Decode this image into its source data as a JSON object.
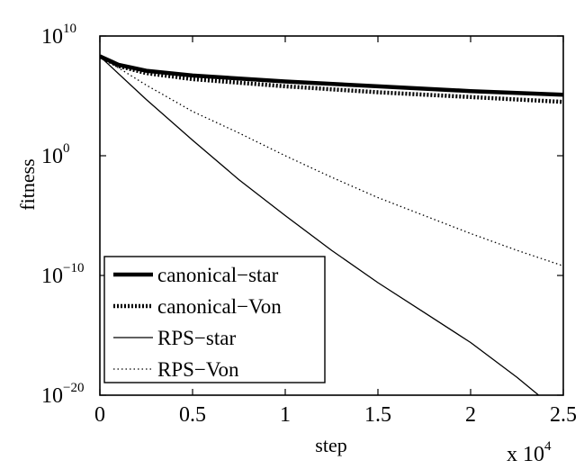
{
  "chart_data": {
    "type": "line",
    "xlabel": "step",
    "ylabel": "fitness",
    "x_multiplier_label": "x 10",
    "x_multiplier_exp": "4",
    "xlim": [
      0,
      2.5
    ],
    "ylim_log10": [
      -20,
      10
    ],
    "y_scale": "log",
    "grid": false,
    "legend_position": "bottom-left",
    "x_ticks": [
      "0",
      "0.5",
      "1",
      "1.5",
      "2",
      "2.5"
    ],
    "y_ticks": [
      {
        "base": "10",
        "exp": "10",
        "log10": 10
      },
      {
        "base": "10",
        "exp": "0",
        "log10": 0
      },
      {
        "base": "10",
        "exp": "−10",
        "log10": -10
      },
      {
        "base": "10",
        "exp": "−20",
        "log10": -20
      }
    ],
    "series": [
      {
        "name": "canonical−star",
        "style": "thick",
        "color": "#000000",
        "x": [
          0,
          0.1,
          0.25,
          0.5,
          1.0,
          1.5,
          2.0,
          2.5
        ],
        "log10_y": [
          8.3,
          7.6,
          7.1,
          6.7,
          6.2,
          5.8,
          5.4,
          5.1
        ]
      },
      {
        "name": "canonical−Von",
        "style": "thick-dotted",
        "color": "#000000",
        "x": [
          0,
          0.1,
          0.25,
          0.5,
          1.0,
          1.5,
          2.0,
          2.5
        ],
        "log10_y": [
          8.3,
          7.5,
          6.9,
          6.4,
          5.8,
          5.3,
          4.9,
          4.5
        ]
      },
      {
        "name": "RPS−star",
        "style": "solid",
        "color": "#000000",
        "x": [
          0,
          0.25,
          0.5,
          0.75,
          1.0,
          1.25,
          1.5,
          1.75,
          2.0,
          2.25,
          2.5
        ],
        "log10_y": [
          8.3,
          4.7,
          1.3,
          -2.0,
          -5.0,
          -7.9,
          -10.6,
          -13.1,
          -15.6,
          -18.5,
          -21.7
        ]
      },
      {
        "name": "RPS−Von",
        "style": "dotted",
        "color": "#000000",
        "x": [
          0,
          0.25,
          0.5,
          0.75,
          1.0,
          1.25,
          1.5,
          1.75,
          2.0,
          2.25,
          2.5
        ],
        "log10_y": [
          8.3,
          5.9,
          3.7,
          1.9,
          0.0,
          -1.8,
          -3.5,
          -5.0,
          -6.5,
          -7.9,
          -9.2
        ]
      }
    ]
  }
}
